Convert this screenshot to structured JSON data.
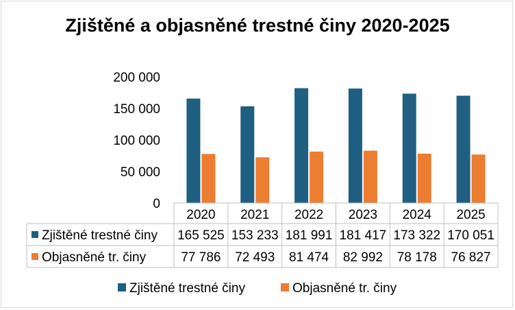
{
  "chart_data": {
    "type": "bar",
    "title": "Zjištěné a objasněné trestné činy 2020-2025",
    "categories": [
      "2020",
      "2021",
      "2022",
      "2023",
      "2024",
      "2025"
    ],
    "series": [
      {
        "name": "Zjištěné trestné činy",
        "color": "#1f5f82",
        "values": [
          165525,
          153233,
          181991,
          181417,
          173322,
          170051
        ],
        "labels": [
          "165 525",
          "153 233",
          "181 991",
          "181 417",
          "173 322",
          "170 051"
        ]
      },
      {
        "name": "Objasněné tr. činy",
        "color": "#ed7d31",
        "values": [
          77786,
          72493,
          81474,
          82992,
          78178,
          76827
        ],
        "labels": [
          "77 786",
          "72 493",
          "81 474",
          "82 992",
          "78 178",
          "76 827"
        ]
      }
    ],
    "ylim": [
      0,
      200000
    ],
    "yticks": [
      0,
      50000,
      100000,
      150000,
      200000
    ],
    "ytick_labels": [
      "0",
      "50 000",
      "100 000",
      "150 000",
      "200 000"
    ],
    "grid": false,
    "legend": "bottom",
    "data_table": true
  }
}
